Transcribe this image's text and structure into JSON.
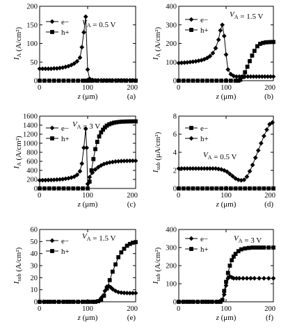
{
  "chart_data": [
    {
      "id": "a",
      "type": "line",
      "panel_label": "(a)",
      "xlabel": "z (μm)",
      "ylabel": "I_A (A/cm²)",
      "xlim": [
        0,
        200
      ],
      "ylim": [
        0,
        200
      ],
      "xticks": [
        0,
        100,
        200
      ],
      "yticks": [
        0,
        50,
        100,
        150,
        200
      ],
      "annotation": "V_A = 0.5 V",
      "legend_position": "top-left",
      "series": [
        {
          "name": "e−",
          "marker": "diamond",
          "x": [
            0,
            6,
            12,
            18,
            24,
            30,
            36,
            42,
            48,
            54,
            60,
            66,
            72,
            78,
            84,
            88,
            92,
            96,
            100,
            104,
            110,
            116,
            122,
            128,
            134,
            140,
            146,
            152,
            158,
            164,
            170,
            176,
            182,
            188,
            194,
            200
          ],
          "y": [
            32,
            32,
            32,
            32,
            32,
            33,
            33,
            34,
            35,
            37,
            39,
            42,
            46,
            52,
            62,
            90,
            130,
            172,
            30,
            5,
            2,
            1,
            1,
            1,
            1,
            1,
            1,
            1,
            1,
            1,
            1,
            1,
            1,
            1,
            1,
            1
          ]
        },
        {
          "name": "h+",
          "marker": "square",
          "x": [
            0,
            10,
            20,
            30,
            40,
            50,
            60,
            70,
            80,
            90,
            96,
            100,
            105,
            110,
            120,
            130,
            140,
            150,
            160,
            170,
            180,
            190,
            200
          ],
          "y": [
            0,
            0,
            0,
            0,
            0,
            0,
            0,
            0,
            0,
            0,
            0,
            0,
            0,
            0,
            0,
            0,
            0,
            0,
            0,
            0,
            0,
            0,
            0
          ]
        }
      ]
    },
    {
      "id": "b",
      "type": "line",
      "panel_label": "(b)",
      "xlabel": "z (μm)",
      "ylabel": "I_A (A/cm²)",
      "xlim": [
        0,
        200
      ],
      "ylim": [
        0,
        400
      ],
      "xticks": [
        0,
        100,
        200
      ],
      "yticks": [
        0,
        100,
        200,
        300,
        400
      ],
      "annotation": "V_A = 1.5 V",
      "legend_position": "top-left",
      "series": [
        {
          "name": "e−",
          "marker": "diamond",
          "x": [
            0,
            6,
            12,
            18,
            24,
            30,
            36,
            42,
            48,
            54,
            60,
            66,
            72,
            78,
            84,
            88,
            92,
            96,
            100,
            104,
            110,
            116,
            122,
            128,
            134,
            140,
            146,
            152,
            158,
            164,
            170,
            176,
            182,
            188,
            194,
            200
          ],
          "y": [
            95,
            96,
            97,
            98,
            100,
            102,
            104,
            107,
            110,
            115,
            122,
            132,
            148,
            175,
            220,
            270,
            300,
            240,
            140,
            60,
            35,
            25,
            22,
            22,
            22,
            22,
            22,
            22,
            22,
            22,
            22,
            22,
            22,
            22,
            22,
            22
          ]
        },
        {
          "name": "h+",
          "marker": "square",
          "x": [
            0,
            10,
            20,
            30,
            40,
            50,
            60,
            70,
            80,
            90,
            100,
            110,
            120,
            126,
            130,
            135,
            140,
            145,
            150,
            155,
            160,
            166,
            172,
            178,
            184,
            190,
            196,
            200
          ],
          "y": [
            0,
            0,
            0,
            0,
            0,
            0,
            0,
            0,
            0,
            0,
            0,
            0,
            0,
            0,
            5,
            20,
            45,
            75,
            105,
            135,
            160,
            185,
            198,
            203,
            206,
            207,
            208,
            208
          ]
        }
      ]
    },
    {
      "id": "c",
      "type": "line",
      "panel_label": "(c)",
      "xlabel": "z (μm)",
      "ylabel": "I_A (A/cm²)",
      "xlim": [
        0,
        200
      ],
      "ylim": [
        0,
        1600
      ],
      "xticks": [
        0,
        100,
        200
      ],
      "yticks": [
        0,
        200,
        400,
        600,
        800,
        1000,
        1200,
        1400,
        1600
      ],
      "annotation": "V_A = 3 V",
      "legend_position": "top-left",
      "series": [
        {
          "name": "e−",
          "marker": "diamond",
          "x": [
            0,
            6,
            12,
            18,
            24,
            30,
            36,
            42,
            48,
            54,
            60,
            66,
            72,
            78,
            84,
            88,
            92,
            96,
            98,
            100,
            104,
            110,
            116,
            122,
            128,
            134,
            140,
            146,
            152,
            158,
            164,
            170,
            176,
            182,
            188,
            194,
            200
          ],
          "y": [
            180,
            182,
            184,
            186,
            188,
            190,
            195,
            200,
            205,
            215,
            225,
            240,
            260,
            300,
            380,
            550,
            900,
            1320,
            900,
            100,
            250,
            350,
            420,
            470,
            510,
            540,
            560,
            575,
            585,
            595,
            600,
            605,
            608,
            610,
            612,
            612,
            612
          ]
        },
        {
          "name": "h+",
          "marker": "square",
          "x": [
            0,
            10,
            20,
            30,
            40,
            50,
            60,
            70,
            80,
            90,
            100,
            104,
            108,
            112,
            116,
            120,
            124,
            128,
            132,
            136,
            140,
            145,
            150,
            155,
            160,
            166,
            172,
            178,
            184,
            190,
            196,
            200
          ],
          "y": [
            0,
            0,
            0,
            0,
            0,
            0,
            0,
            0,
            0,
            0,
            0,
            150,
            400,
            650,
            870,
            1030,
            1150,
            1240,
            1300,
            1350,
            1390,
            1420,
            1440,
            1455,
            1465,
            1472,
            1478,
            1480,
            1482,
            1483,
            1484,
            1484
          ]
        }
      ]
    },
    {
      "id": "d",
      "type": "line",
      "panel_label": "(d)",
      "xlabel": "z (μm)",
      "ylabel": "I_sub (μA/cm²)",
      "xlim": [
        0,
        200
      ],
      "ylim": [
        0,
        8
      ],
      "xticks": [
        0,
        100,
        200
      ],
      "yticks": [
        0,
        2,
        4,
        6,
        8
      ],
      "annotation": "V_A = 0.5 V",
      "legend_position": "top-left",
      "series": [
        {
          "name": "e−",
          "marker": "square",
          "x": [
            0,
            10,
            20,
            30,
            40,
            50,
            60,
            70,
            80,
            90,
            100,
            110,
            120,
            130,
            140,
            150,
            160,
            170,
            180,
            190,
            200
          ],
          "y": [
            0,
            0,
            0,
            0,
            0,
            0,
            0,
            0,
            0,
            0,
            0,
            0,
            0,
            0,
            0,
            0,
            0,
            0,
            0,
            0,
            0
          ]
        },
        {
          "name": "h+",
          "marker": "diamond",
          "x": [
            0,
            6,
            12,
            18,
            24,
            30,
            36,
            42,
            48,
            54,
            60,
            66,
            72,
            78,
            84,
            90,
            96,
            102,
            108,
            114,
            120,
            126,
            132,
            138,
            144,
            150,
            156,
            162,
            168,
            174,
            180,
            186,
            192,
            198
          ],
          "y": [
            2.2,
            2.2,
            2.2,
            2.2,
            2.2,
            2.2,
            2.2,
            2.2,
            2.2,
            2.2,
            2.2,
            2.2,
            2.2,
            2.2,
            2.15,
            2.1,
            2.0,
            1.85,
            1.6,
            1.35,
            1.1,
            0.95,
            0.9,
            0.95,
            1.3,
            1.9,
            2.6,
            3.4,
            4.2,
            5.0,
            5.8,
            6.5,
            7.1,
            7.3
          ]
        }
      ]
    },
    {
      "id": "e",
      "type": "line",
      "panel_label": "(e)",
      "xlabel": "z (μm)",
      "ylabel": "I_sub (A/cm²)",
      "xlim": [
        0,
        200
      ],
      "ylim": [
        0,
        60
      ],
      "xticks": [
        0,
        100,
        200
      ],
      "yticks": [
        0,
        10,
        20,
        30,
        40,
        50,
        60
      ],
      "annotation": "V_A = 1.5 V",
      "legend_position": "top-left",
      "series": [
        {
          "name": "e−",
          "marker": "diamond",
          "x": [
            0,
            8,
            16,
            24,
            32,
            40,
            48,
            56,
            64,
            72,
            80,
            88,
            96,
            104,
            112,
            118,
            124,
            130,
            136,
            140,
            144,
            148,
            152,
            158,
            164,
            170,
            176,
            182,
            188,
            194,
            200
          ],
          "y": [
            0,
            0,
            0,
            0,
            0,
            0,
            0,
            0,
            0,
            0,
            0,
            0,
            0,
            0,
            0,
            0.2,
            1,
            4,
            9,
            12.5,
            13,
            12,
            10.5,
            9,
            8,
            7.6,
            7.4,
            7.3,
            7.2,
            7.2,
            7.2
          ]
        },
        {
          "name": "h+",
          "marker": "square",
          "x": [
            0,
            10,
            20,
            30,
            40,
            50,
            60,
            70,
            80,
            90,
            100,
            110,
            116,
            122,
            128,
            134,
            140,
            146,
            152,
            158,
            164,
            170,
            176,
            182,
            188,
            194,
            200
          ],
          "y": [
            0,
            0,
            0,
            0,
            0,
            0,
            0,
            0,
            0,
            0,
            0,
            0,
            0,
            0.5,
            2,
            5,
            11,
            18,
            25,
            31,
            37,
            41,
            44,
            46.5,
            48,
            49,
            49.5
          ]
        }
      ]
    },
    {
      "id": "f",
      "type": "line",
      "panel_label": "(f)",
      "xlabel": "z (μm)",
      "ylabel": "I_sub (A/cm²)",
      "xlim": [
        0,
        200
      ],
      "ylim": [
        0,
        400
      ],
      "xticks": [
        0,
        100,
        200
      ],
      "yticks": [
        0,
        100,
        200,
        300,
        400
      ],
      "annotation": "V_A = 3 V",
      "legend_position": "top-left",
      "series": [
        {
          "name": "e−",
          "marker": "diamond",
          "x": [
            0,
            8,
            16,
            24,
            32,
            40,
            48,
            56,
            64,
            72,
            80,
            86,
            92,
            96,
            100,
            104,
            108,
            112,
            116,
            122,
            128,
            136,
            144,
            152,
            160,
            170,
            180,
            190,
            200
          ],
          "y": [
            0,
            0,
            0,
            0,
            0,
            0,
            0,
            0,
            0,
            0,
            0,
            2,
            10,
            40,
            90,
            130,
            140,
            135,
            130,
            130,
            130,
            130,
            130,
            130,
            130,
            130,
            130,
            130,
            130
          ]
        },
        {
          "name": "h+",
          "marker": "square",
          "x": [
            0,
            10,
            20,
            30,
            40,
            50,
            60,
            70,
            80,
            88,
            92,
            96,
            100,
            104,
            108,
            112,
            116,
            120,
            126,
            132,
            140,
            148,
            156,
            164,
            172,
            180,
            190,
            200
          ],
          "y": [
            0,
            0,
            0,
            0,
            0,
            0,
            0,
            0,
            0,
            0,
            10,
            60,
            110,
            160,
            200,
            230,
            250,
            265,
            280,
            290,
            295,
            298,
            300,
            300,
            300,
            300,
            300,
            300
          ]
        }
      ]
    }
  ]
}
